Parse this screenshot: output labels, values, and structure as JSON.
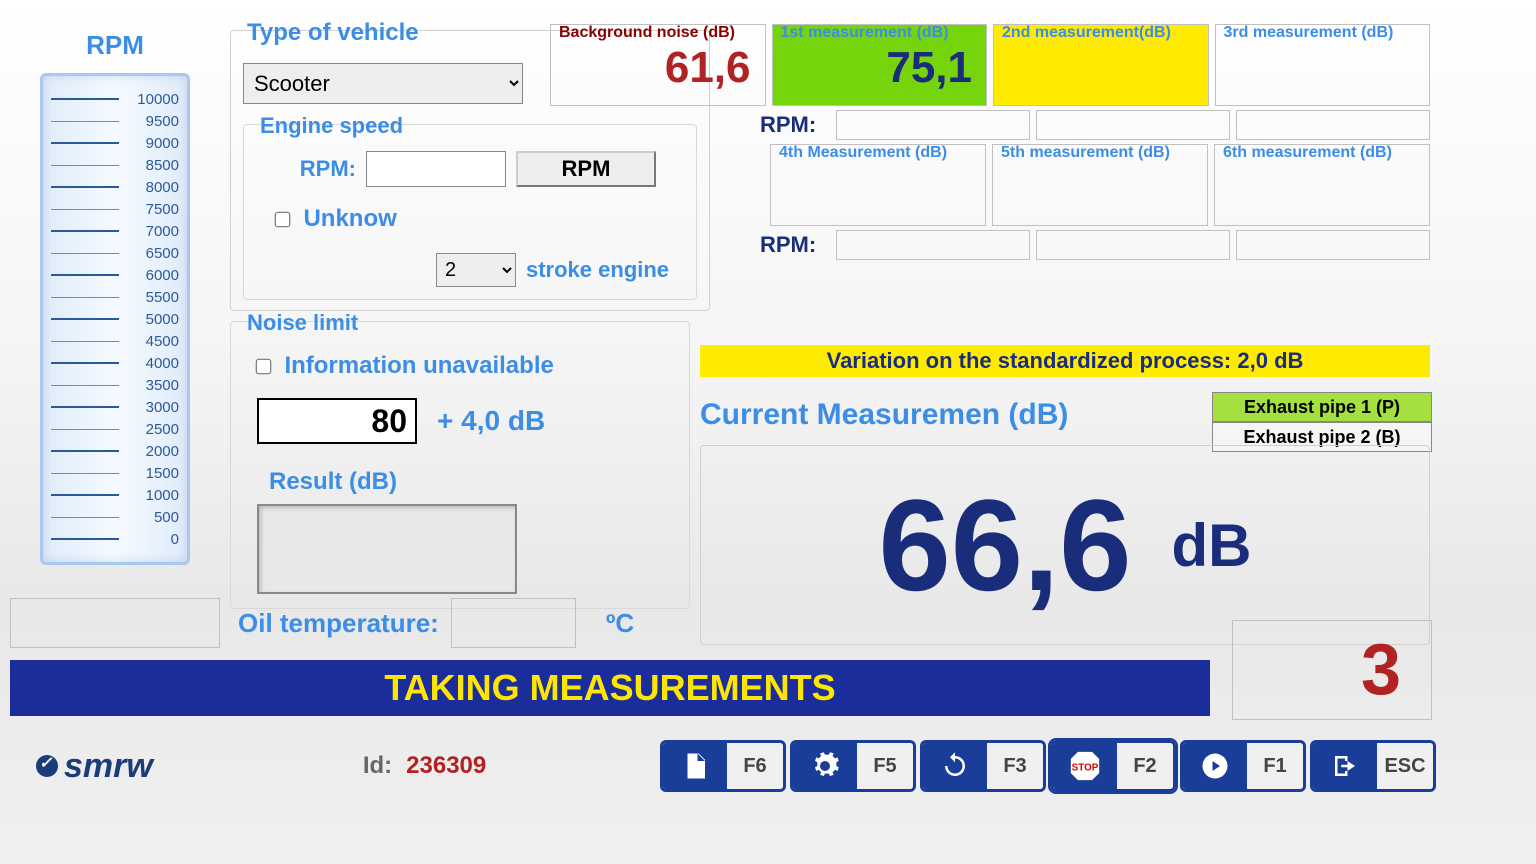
{
  "rpm_gauge": {
    "title": "RPM",
    "ticks": [
      10000,
      9500,
      9000,
      8500,
      8000,
      7500,
      7000,
      6500,
      6000,
      5500,
      5000,
      4500,
      4000,
      3500,
      3000,
      2500,
      2000,
      1500,
      1000,
      500,
      0
    ],
    "major_every": 1000
  },
  "vehicle": {
    "type_label": "Type of vehicle",
    "selected": "Scooter"
  },
  "engine": {
    "legend": "Engine speed",
    "rpm_label": "RPM:",
    "rpm_value": "",
    "rpm_button": "RPM",
    "unknown_label": "Unknow",
    "stroke_value": "2",
    "stroke_label": "stroke engine"
  },
  "noise": {
    "legend": "Noise limit",
    "info_unavail": "Information unavailable",
    "limit_value": "80",
    "plus_label": "+ 4,0 dB",
    "result_label": "Result (dB)"
  },
  "measurements": {
    "bg": {
      "label": "Background noise (dB)",
      "value": "61,6"
    },
    "m1": {
      "label": "1st measurement (dB)",
      "value": "75,1",
      "state": "green"
    },
    "m2": {
      "label": "2nd measurement(dB)",
      "value": "",
      "state": "yellow"
    },
    "m3": {
      "label": "3rd measurement (dB)",
      "value": "",
      "state": "plain"
    },
    "m4": {
      "label": "4th Measurement (dB)",
      "value": "",
      "state": "plain"
    },
    "m5": {
      "label": "5th measurement (dB)",
      "value": "",
      "state": "plain"
    },
    "m6": {
      "label": "6th measurement (dB)",
      "value": "",
      "state": "plain"
    },
    "rpm_label": "RPM:"
  },
  "variation": {
    "text": "Variation on the standardized process: 2,0 dB"
  },
  "current": {
    "label": "Current Measuremen (dB)",
    "value": "66,6",
    "unit": "dB"
  },
  "pipes": {
    "p1": "Exhaust pipe 1 (P)",
    "p2": "Exhaust pipe 2 (B)"
  },
  "oil": {
    "label": "Oil temperature:",
    "unit": "ºC"
  },
  "status": {
    "text": "TAKING MEASUREMENTS",
    "count": "3"
  },
  "footer": {
    "brand": "smrw",
    "id_label": "Id:",
    "id_value": "236309",
    "fkeys": [
      {
        "code": "F6",
        "icon": "file"
      },
      {
        "code": "F5",
        "icon": "gear"
      },
      {
        "code": "F3",
        "icon": "sync"
      },
      {
        "code": "F2",
        "icon": "stop"
      },
      {
        "code": "F1",
        "icon": "play"
      },
      {
        "code": "ESC",
        "icon": "exit"
      }
    ]
  },
  "colors": {
    "brand_blue": "#3b8de6",
    "dark_blue": "#1a2d7a",
    "status_bg": "#1a2d9a",
    "status_text": "#ffe600",
    "green": "#76d40d",
    "yellow": "#ffeb00",
    "dark_red": "#b22222"
  }
}
